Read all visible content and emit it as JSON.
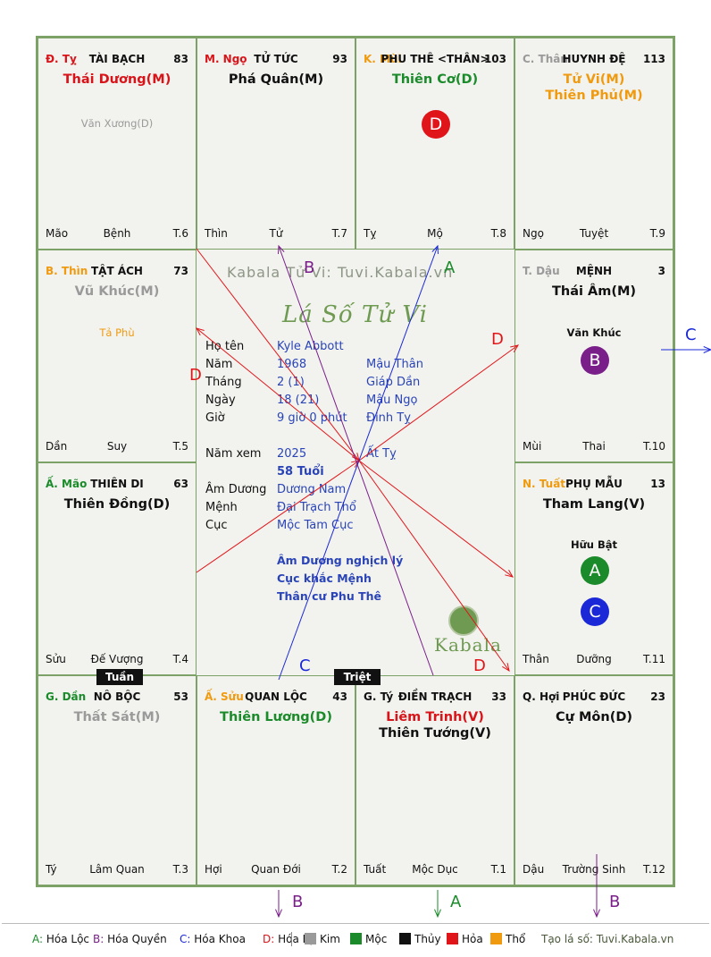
{
  "palaces": [
    {
      "id": "ty",
      "position": "Đ. Tỵ",
      "name": "TÀI BẠCH",
      "number": "83",
      "main_stars": [
        "Thái Dương(M)"
      ],
      "main_colors": [
        "#d8141a"
      ],
      "minor_stars": [
        "Văn Xương(D)"
      ],
      "bottom_left": "Mão",
      "bottom_center": "Bệnh",
      "bottom_right": "T.6"
    },
    {
      "id": "ngo",
      "position": "M. Ngọ",
      "name": "TỬ TỨC",
      "number": "93",
      "main_stars": [
        "Phá Quân(M)"
      ],
      "main_colors": [
        "#111111"
      ],
      "minor_stars": [],
      "bottom_left": "Thìn",
      "bottom_center": "Tử",
      "bottom_right": "T.7"
    },
    {
      "id": "mui",
      "position": "K. Mùi",
      "name": "PHU THÊ <THÂN>",
      "number": "103",
      "main_stars": [
        "Thiên Cơ(D)"
      ],
      "main_colors": [
        "#1a8a2a"
      ],
      "minor_stars": [],
      "badges": [
        "D"
      ],
      "bottom_left": "Tỵ",
      "bottom_center": "Mộ",
      "bottom_right": "T.8"
    },
    {
      "id": "than",
      "position": "C. Thân",
      "name": "HUYNH ĐỆ",
      "number": "113",
      "main_stars": [
        "Tử Vi(M)",
        "Thiên Phủ(M)"
      ],
      "main_colors": [
        "#f09a10",
        "#f09a10"
      ],
      "minor_stars": [],
      "bottom_left": "Ngọ",
      "bottom_center": "Tuyệt",
      "bottom_right": "T.9"
    },
    {
      "id": "thin",
      "position": "B. Thìn",
      "name": "TẬT ÁCH",
      "number": "73",
      "main_stars": [
        "Vũ Khúc(M)"
      ],
      "main_colors": [
        "#9a9a9a"
      ],
      "minor_stars": [
        "Tả Phù"
      ],
      "bottom_left": "Dần",
      "bottom_center": "Suy",
      "bottom_right": "T.5"
    },
    {
      "id": "dau",
      "position": "T. Dậu",
      "name": "MỆNH",
      "number": "3",
      "main_stars": [
        "Thái Âm(M)"
      ],
      "main_colors": [
        "#111111"
      ],
      "minor_stars": [
        "Văn Khúc"
      ],
      "badges": [
        "B"
      ],
      "bottom_left": "Mùi",
      "bottom_center": "Thai",
      "bottom_right": "T.10"
    },
    {
      "id": "mao",
      "position": "Ấ. Mão",
      "name": "THIÊN DI",
      "number": "63",
      "main_stars": [
        "Thiên Đồng(D)"
      ],
      "main_colors": [
        "#111111"
      ],
      "minor_stars": [],
      "bottom_left": "Sửu",
      "bottom_center": "Đế Vượng",
      "bottom_right": "T.4"
    },
    {
      "id": "tuat",
      "position": "N. Tuất",
      "name": "PHỤ MẪU",
      "number": "13",
      "main_stars": [
        "Tham Lang(V)"
      ],
      "main_colors": [
        "#111111"
      ],
      "minor_stars": [
        "Hữu Bật"
      ],
      "badges": [
        "A",
        "C"
      ],
      "bottom_left": "Thân",
      "bottom_center": "Dưỡng",
      "bottom_right": "T.11"
    },
    {
      "id": "dan",
      "position": "G. Dần",
      "name": "NÔ BỘC",
      "number": "53",
      "main_stars": [
        "Thất Sát(M)"
      ],
      "main_colors": [
        "#9a9a9a"
      ],
      "minor_stars": [],
      "bottom_left": "Tý",
      "bottom_center": "Lâm Quan",
      "bottom_right": "T.3"
    },
    {
      "id": "suu",
      "position": "Ấ. Sửu",
      "name": "QUAN LỘC",
      "number": "43",
      "main_stars": [
        "Thiên Lương(D)"
      ],
      "main_colors": [
        "#1a8a2a"
      ],
      "minor_stars": [],
      "bottom_left": "Hợi",
      "bottom_center": "Quan Đới",
      "bottom_right": "T.2"
    },
    {
      "id": "ty2",
      "position": "G. Tý",
      "name": "ĐIỀN TRẠCH",
      "number": "33",
      "main_stars": [
        "Liêm Trinh(V)",
        "Thiên Tướng(V)"
      ],
      "main_colors": [
        "#d8141a",
        "#111111"
      ],
      "minor_stars": [],
      "bottom_left": "Tuất",
      "bottom_center": "Mộc Dục",
      "bottom_right": "T.1"
    },
    {
      "id": "hoi",
      "position": "Q. Hợi",
      "name": "PHÚC ĐỨC",
      "number": "23",
      "main_stars": [
        "Cự Môn(D)"
      ],
      "main_colors": [
        "#111111"
      ],
      "minor_stars": [],
      "bottom_left": "Dậu",
      "bottom_center": "Trường Sinh",
      "bottom_right": "T.12"
    }
  ],
  "position_colors": {
    "ty": "#d8141a",
    "ngo": "#d8141a",
    "mui": "#f09a10",
    "than": "#9a9a9a",
    "thin": "#f09a10",
    "dau": "#9a9a9a",
    "mao": "#1a8a2a",
    "tuat": "#f09a10",
    "dan": "#1a8a2a",
    "suu": "#f09a10",
    "ty2": "#111111",
    "hoi": "#111111"
  },
  "tags": {
    "tuan": "Tuần",
    "triet": "Triệt"
  },
  "center": {
    "watermark": "Kabala Tử Vi: Tuvi.Kabala.vn",
    "title": "Lá Số Tử Vi",
    "rows": [
      {
        "k": "Họ tên",
        "v": "Kyle Abbott",
        "v2": ""
      },
      {
        "k": "Năm",
        "v": "1968",
        "v2": "Mậu Thân"
      },
      {
        "k": "Tháng",
        "v": "2  (1)",
        "v2": "Giáp Dần"
      },
      {
        "k": "Ngày",
        "v": "18  (21)",
        "v2": "Mậu Ngọ"
      },
      {
        "k": "Giờ",
        "v": "9 giờ 0 phút",
        "v2": "Đinh Tỵ"
      },
      {
        "k": "Năm xem",
        "v": "2025",
        "v2": "Ất Tỵ"
      },
      {
        "k": "",
        "v": "58 Tuổi",
        "v2": ""
      },
      {
        "k": "Âm Dương",
        "v": "Dương Nam",
        "v2": ""
      },
      {
        "k": "Mệnh",
        "v": "Đại Trạch Thổ",
        "v2": ""
      },
      {
        "k": "Cục",
        "v": "Mộc Tam Cục",
        "v2": ""
      }
    ],
    "notes": [
      "Âm Dương nghịch lý",
      "Cục khắc Mệnh",
      "Thân cư Phu Thê"
    ],
    "brand": "Kabala"
  },
  "badge_colors": {
    "A": "#1a8a2a",
    "B": "#7a1f8a",
    "C": "#1a28d8",
    "D": "#e0151a"
  },
  "line_labels": {
    "A": "A",
    "B": "B",
    "C": "C",
    "D": "D"
  },
  "legend": {
    "items": [
      {
        "key": "A:",
        "text": " Hóa Lộc",
        "color": "#1a8a2a"
      },
      {
        "key": "B:",
        "text": " Hóa Quyền",
        "color": "#7a1f8a"
      },
      {
        "key": "C:",
        "text": " Hóa Khoa",
        "color": "#1a28d8"
      },
      {
        "key": "D:",
        "text": " Hóa Kị",
        "color": "#d8141a"
      }
    ],
    "elements": [
      {
        "name": "Kim",
        "color": "#9a9a9a"
      },
      {
        "name": "Mộc",
        "color": "#1a8a2a"
      },
      {
        "name": "Thủy",
        "color": "#111111"
      },
      {
        "name": "Hỏa",
        "color": "#e0151a"
      },
      {
        "name": "Thổ",
        "color": "#f09a10"
      }
    ],
    "credit": "Tạo lá số: Tuvi.Kabala.vn"
  }
}
